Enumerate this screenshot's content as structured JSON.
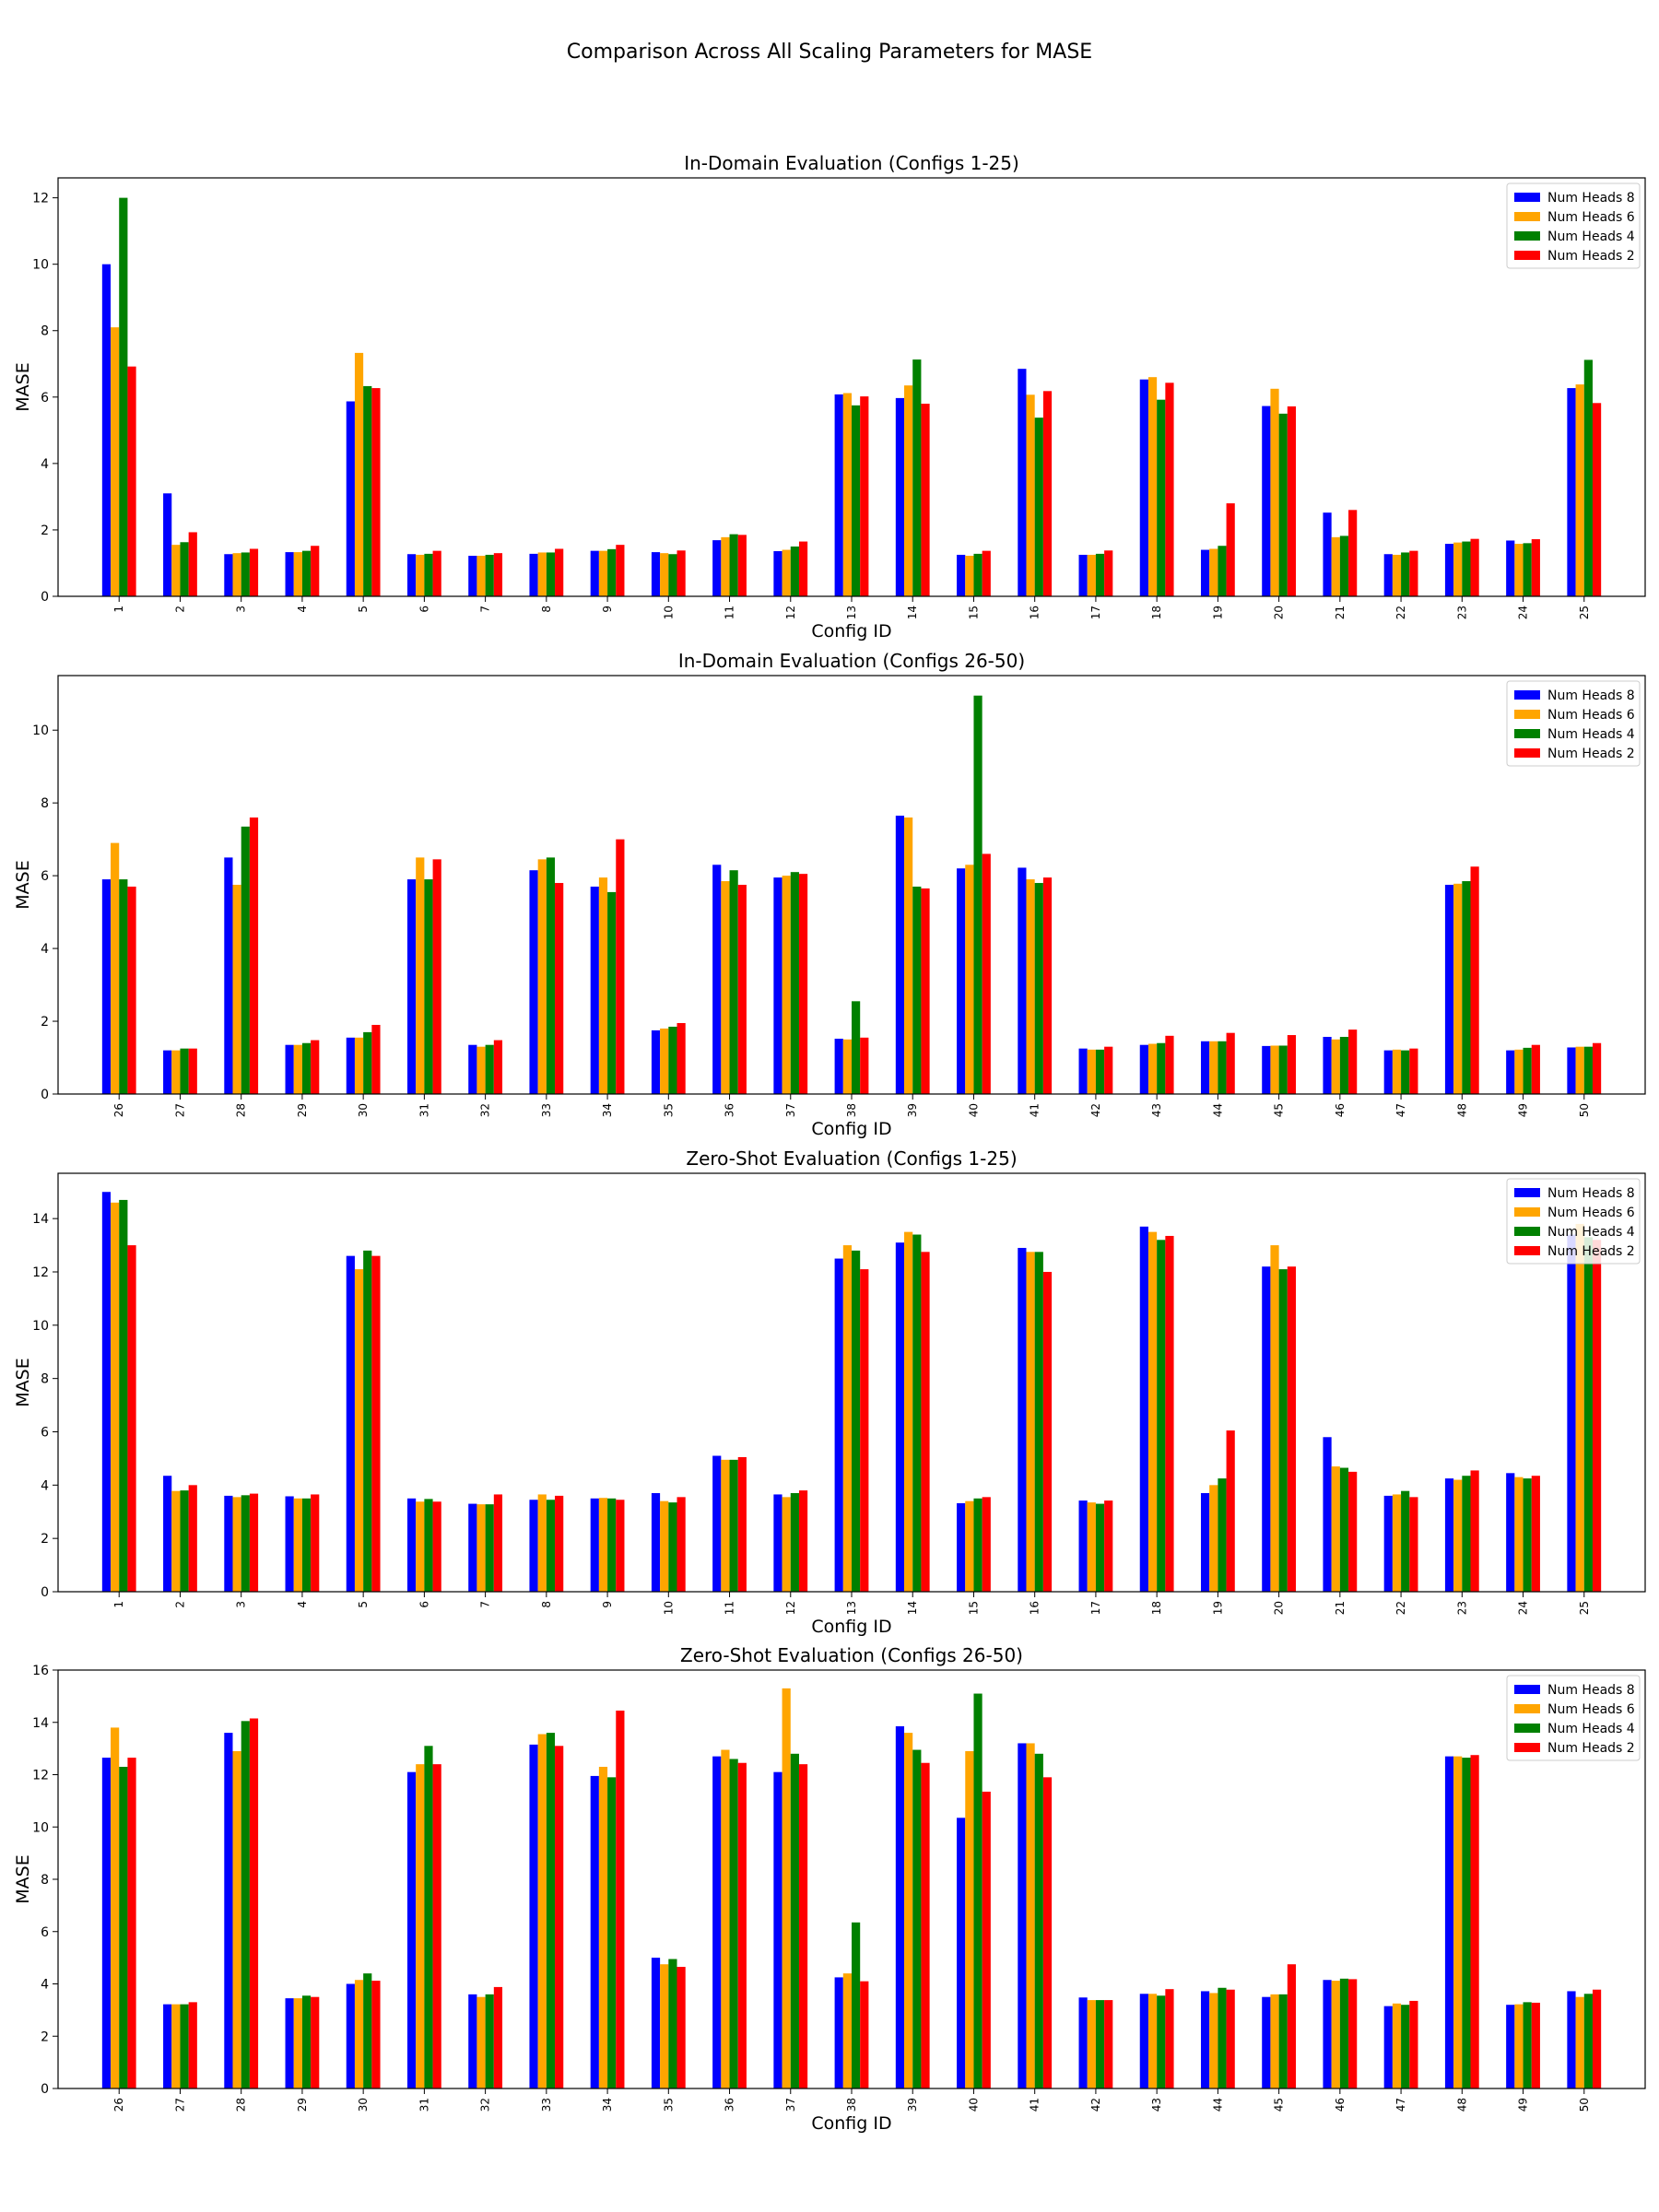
{
  "suptitle": "Comparison Across All Scaling Parameters for MASE",
  "chart_data": [
    {
      "type": "bar",
      "title": "In-Domain Evaluation (Configs 1-25)",
      "xlabel": "Config ID",
      "ylabel": "MASE",
      "ylim": [
        0,
        12.6
      ],
      "yticks": [
        "0",
        "2",
        "4",
        "6",
        "8",
        "10",
        "12"
      ],
      "legend_position": "top-right",
      "categories": [
        "1",
        "2",
        "3",
        "4",
        "5",
        "6",
        "7",
        "8",
        "9",
        "10",
        "11",
        "12",
        "13",
        "14",
        "15",
        "16",
        "17",
        "18",
        "19",
        "20",
        "21",
        "22",
        "23",
        "24",
        "25"
      ],
      "series": [
        {
          "name": "Num Heads 8",
          "color": "#0000ff",
          "values": [
            10.0,
            3.1,
            1.27,
            1.33,
            5.87,
            1.27,
            1.22,
            1.28,
            1.37,
            1.33,
            1.69,
            1.36,
            6.08,
            5.97,
            1.25,
            6.85,
            1.25,
            6.53,
            1.4,
            5.73,
            2.52,
            1.27,
            1.58,
            1.68,
            6.27
          ]
        },
        {
          "name": "Num Heads 6",
          "color": "#ffa500",
          "values": [
            8.1,
            1.55,
            1.3,
            1.33,
            7.33,
            1.25,
            1.22,
            1.32,
            1.37,
            1.3,
            1.78,
            1.4,
            6.12,
            6.35,
            1.22,
            6.07,
            1.25,
            6.6,
            1.43,
            6.25,
            1.78,
            1.25,
            1.62,
            1.58,
            6.38
          ]
        },
        {
          "name": "Num Heads 4",
          "color": "#008000",
          "values": [
            12.0,
            1.63,
            1.32,
            1.37,
            6.33,
            1.28,
            1.25,
            1.32,
            1.42,
            1.27,
            1.87,
            1.5,
            5.75,
            7.13,
            1.28,
            5.38,
            1.28,
            5.92,
            1.52,
            5.5,
            1.82,
            1.32,
            1.65,
            1.6,
            7.12
          ]
        },
        {
          "name": "Num Heads 2",
          "color": "#ff0000",
          "values": [
            6.92,
            1.93,
            1.43,
            1.52,
            6.27,
            1.37,
            1.3,
            1.43,
            1.55,
            1.38,
            1.85,
            1.65,
            6.02,
            5.8,
            1.37,
            6.18,
            1.38,
            6.43,
            2.8,
            5.72,
            2.6,
            1.37,
            1.73,
            1.72,
            5.82
          ]
        }
      ]
    },
    {
      "type": "bar",
      "title": "In-Domain Evaluation (Configs 26-50)",
      "xlabel": "Config ID",
      "ylabel": "MASE",
      "ylim": [
        0,
        11.5
      ],
      "yticks": [
        "0",
        "2",
        "4",
        "6",
        "8",
        "10"
      ],
      "legend_position": "top-right",
      "categories": [
        "26",
        "27",
        "28",
        "29",
        "30",
        "31",
        "32",
        "33",
        "34",
        "35",
        "36",
        "37",
        "38",
        "39",
        "40",
        "41",
        "42",
        "43",
        "44",
        "45",
        "46",
        "47",
        "48",
        "49",
        "50"
      ],
      "series": [
        {
          "name": "Num Heads 8",
          "color": "#0000ff",
          "values": [
            5.9,
            1.2,
            6.5,
            1.35,
            1.55,
            5.9,
            1.35,
            6.15,
            5.7,
            1.75,
            6.3,
            5.95,
            1.52,
            7.65,
            6.2,
            6.22,
            1.25,
            1.35,
            1.45,
            1.32,
            1.57,
            1.2,
            5.75,
            1.2,
            1.28
          ]
        },
        {
          "name": "Num Heads 6",
          "color": "#ffa500",
          "values": [
            6.9,
            1.2,
            5.75,
            1.35,
            1.55,
            6.5,
            1.3,
            6.45,
            5.95,
            1.8,
            5.85,
            6.0,
            1.5,
            7.6,
            6.3,
            5.9,
            1.22,
            1.38,
            1.45,
            1.33,
            1.5,
            1.22,
            5.78,
            1.22,
            1.3
          ]
        },
        {
          "name": "Num Heads 4",
          "color": "#008000",
          "values": [
            5.9,
            1.25,
            7.35,
            1.4,
            1.7,
            5.9,
            1.35,
            6.5,
            5.55,
            1.85,
            6.15,
            6.1,
            2.55,
            5.7,
            10.95,
            5.8,
            1.22,
            1.4,
            1.45,
            1.33,
            1.57,
            1.2,
            5.85,
            1.27,
            1.3
          ]
        },
        {
          "name": "Num Heads 2",
          "color": "#ff0000",
          "values": [
            5.7,
            1.25,
            7.6,
            1.48,
            1.9,
            6.45,
            1.48,
            5.8,
            7.0,
            1.95,
            5.75,
            6.05,
            1.55,
            5.65,
            6.6,
            5.95,
            1.3,
            1.6,
            1.68,
            1.62,
            1.77,
            1.25,
            6.25,
            1.35,
            1.4
          ]
        }
      ]
    },
    {
      "type": "bar",
      "title": "Zero-Shot Evaluation (Configs 1-25)",
      "xlabel": "Config ID",
      "ylabel": "MASE",
      "ylim": [
        0,
        15.7
      ],
      "yticks": [
        "0",
        "2",
        "4",
        "6",
        "8",
        "10",
        "12",
        "14"
      ],
      "legend_position": "top-right",
      "categories": [
        "1",
        "2",
        "3",
        "4",
        "5",
        "6",
        "7",
        "8",
        "9",
        "10",
        "11",
        "12",
        "13",
        "14",
        "15",
        "16",
        "17",
        "18",
        "19",
        "20",
        "21",
        "22",
        "23",
        "24",
        "25"
      ],
      "series": [
        {
          "name": "Num Heads 8",
          "color": "#0000ff",
          "values": [
            15.0,
            4.35,
            3.6,
            3.58,
            12.6,
            3.5,
            3.3,
            3.45,
            3.5,
            3.7,
            5.1,
            3.65,
            12.5,
            13.1,
            3.32,
            12.9,
            3.42,
            13.7,
            3.7,
            12.2,
            5.8,
            3.6,
            4.25,
            4.45,
            13.4
          ]
        },
        {
          "name": "Num Heads 6",
          "color": "#ffa500",
          "values": [
            14.6,
            3.78,
            3.55,
            3.5,
            12.1,
            3.38,
            3.28,
            3.65,
            3.52,
            3.4,
            4.95,
            3.55,
            13.0,
            13.5,
            3.4,
            12.75,
            3.35,
            13.5,
            4.0,
            13.0,
            4.7,
            3.65,
            4.2,
            4.3,
            13.8
          ]
        },
        {
          "name": "Num Heads 4",
          "color": "#008000",
          "values": [
            14.7,
            3.8,
            3.62,
            3.5,
            12.8,
            3.48,
            3.28,
            3.45,
            3.5,
            3.35,
            4.95,
            3.7,
            12.8,
            13.4,
            3.5,
            12.75,
            3.3,
            13.2,
            4.25,
            12.1,
            4.65,
            3.78,
            4.35,
            4.25,
            13.3
          ]
        },
        {
          "name": "Num Heads 2",
          "color": "#ff0000",
          "values": [
            13.0,
            4.0,
            3.68,
            3.65,
            12.6,
            3.38,
            3.65,
            3.6,
            3.45,
            3.55,
            5.05,
            3.8,
            12.1,
            12.75,
            3.55,
            12.0,
            3.42,
            13.35,
            6.05,
            12.2,
            4.5,
            3.55,
            4.55,
            4.35,
            13.2
          ]
        }
      ]
    },
    {
      "type": "bar",
      "title": "Zero-Shot Evaluation (Configs 26-50)",
      "xlabel": "Config ID",
      "ylabel": "MASE",
      "ylim": [
        0,
        16
      ],
      "yticks": [
        "0",
        "2",
        "4",
        "6",
        "8",
        "10",
        "12",
        "14",
        "16"
      ],
      "legend_position": "top-right",
      "categories": [
        "26",
        "27",
        "28",
        "29",
        "30",
        "31",
        "32",
        "33",
        "34",
        "35",
        "36",
        "37",
        "38",
        "39",
        "40",
        "41",
        "42",
        "43",
        "44",
        "45",
        "46",
        "47",
        "48",
        "49",
        "50"
      ],
      "series": [
        {
          "name": "Num Heads 8",
          "color": "#0000ff",
          "values": [
            12.65,
            3.22,
            13.6,
            3.45,
            4.0,
            12.1,
            3.6,
            13.15,
            11.95,
            5.0,
            12.7,
            12.1,
            4.25,
            13.85,
            10.35,
            13.2,
            3.48,
            3.62,
            3.72,
            3.5,
            4.15,
            3.15,
            12.7,
            3.2,
            3.72
          ]
        },
        {
          "name": "Num Heads 6",
          "color": "#ffa500",
          "values": [
            13.8,
            3.22,
            12.9,
            3.45,
            4.15,
            12.4,
            3.5,
            13.55,
            12.3,
            4.75,
            12.95,
            15.3,
            4.4,
            13.6,
            12.9,
            13.2,
            3.38,
            3.62,
            3.65,
            3.6,
            4.12,
            3.25,
            12.7,
            3.22,
            3.5
          ]
        },
        {
          "name": "Num Heads 4",
          "color": "#008000",
          "values": [
            12.3,
            3.22,
            14.05,
            3.55,
            4.4,
            13.1,
            3.6,
            13.6,
            11.9,
            4.95,
            12.6,
            12.8,
            6.35,
            12.95,
            15.1,
            12.8,
            3.38,
            3.55,
            3.85,
            3.6,
            4.2,
            3.2,
            12.65,
            3.3,
            3.62
          ]
        },
        {
          "name": "Num Heads 2",
          "color": "#ff0000",
          "values": [
            12.65,
            3.3,
            14.15,
            3.5,
            4.12,
            12.4,
            3.88,
            13.1,
            14.45,
            4.65,
            12.45,
            12.4,
            4.1,
            12.45,
            11.35,
            11.9,
            3.38,
            3.8,
            3.78,
            4.75,
            4.18,
            3.35,
            12.75,
            3.28,
            3.78
          ]
        }
      ]
    }
  ]
}
